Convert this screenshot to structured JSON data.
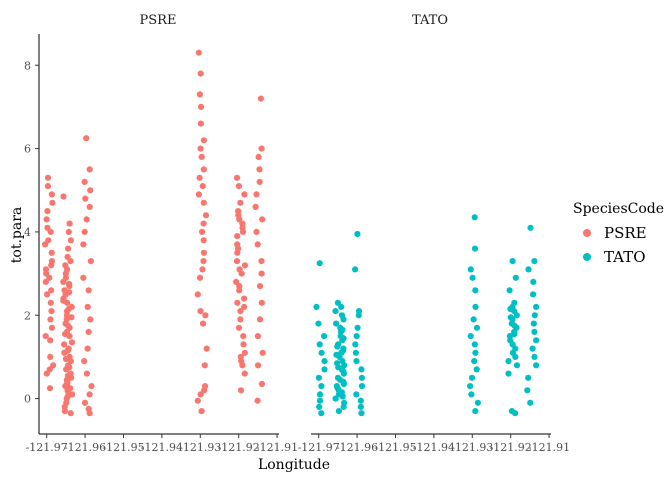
{
  "chart_data": {
    "type": "scatter",
    "xlabel": "Longitude",
    "ylabel": "tot.para",
    "ylim": [
      -0.85,
      8.75
    ],
    "y_ticks": [
      "0",
      "2",
      "4",
      "6",
      "8"
    ],
    "x_tick_labels": [
      "-121.97",
      "-121.96",
      "-121.95",
      "-121.94",
      "-121.93",
      "-121.92",
      "-121.91"
    ],
    "xlim": [
      -121.972,
      -121.9095
    ],
    "legend_position": "right",
    "legend": {
      "title": "SpeciesCode",
      "entries": [
        {
          "label": "PSRE",
          "color": "#F8766D"
        },
        {
          "label": "TATO",
          "color": "#00BFC4"
        }
      ]
    },
    "panels": [
      {
        "strip": "PSRE",
        "color": "#F8766D",
        "clusters": [
          {
            "lon": -121.9695,
            "values": [
              0.25,
              0.6,
              0.7,
              0.8,
              1.0,
              1.4,
              1.5,
              1.7,
              1.9,
              2.1,
              2.3,
              2.5,
              2.6,
              2.8,
              2.9,
              3.0,
              3.1,
              3.2,
              3.3,
              3.5,
              3.7,
              3.8,
              4.0,
              4.1,
              4.3,
              4.5,
              4.7,
              4.9,
              5.1,
              5.3
            ]
          },
          {
            "lon": -121.9645,
            "values": [
              -0.35,
              -0.3,
              -0.2,
              -0.1,
              0,
              0.05,
              0.1,
              0.2,
              0.25,
              0.3,
              0.4,
              0.5,
              0.6,
              0.7,
              0.8,
              0.9,
              1.0,
              1.1,
              1.2,
              1.3,
              1.5,
              1.6,
              1.7,
              1.8,
              1.9,
              2.0,
              2.1,
              2.2,
              2.3,
              2.4,
              2.5,
              2.6,
              2.7,
              2.8,
              2.9,
              3.0,
              3.1,
              3.2,
              3.3,
              3.4,
              3.6,
              3.8,
              4.0,
              4.2,
              4.85,
              0.15,
              0.35,
              0.55,
              0.75,
              0.95,
              1.15,
              1.35,
              1.55,
              1.75,
              1.95,
              2.15,
              2.35,
              2.55,
              2.75,
              0.45
            ]
          },
          {
            "lon": -121.9595,
            "values": [
              -0.35,
              -0.25,
              -0.1,
              0.1,
              0.3,
              0.6,
              0.9,
              1.2,
              1.6,
              1.9,
              2.2,
              2.6,
              2.9,
              3.3,
              3.7,
              4.0,
              4.3,
              4.6,
              4.8,
              5.0,
              5.2,
              5.5,
              6.25
            ]
          },
          {
            "lon": -121.9295,
            "values": [
              -0.3,
              -0.05,
              0.1,
              0.2,
              0.3,
              0.8,
              1.2,
              1.8,
              2.0,
              2.1,
              2.5,
              2.9,
              3.1,
              3.3,
              3.5,
              3.8,
              4.0,
              4.2,
              4.4,
              4.7,
              4.9,
              5.1,
              5.3,
              5.5,
              5.8,
              6.0,
              6.2,
              6.6,
              7.0,
              7.3,
              7.8,
              8.3
            ]
          },
          {
            "lon": -121.9195,
            "values": [
              0.2,
              0.6,
              0.8,
              1.0,
              1.3,
              1.5,
              1.7,
              1.9,
              2.1,
              2.3,
              2.4,
              2.6,
              2.8,
              3.0,
              3.1,
              3.3,
              3.5,
              3.7,
              3.9,
              4.0,
              4.1,
              4.2,
              4.3,
              4.5,
              4.7,
              4.9,
              5.1,
              5.3,
              2.2,
              2.7,
              3.2,
              3.6,
              4.4,
              0.9,
              1.1
            ]
          },
          {
            "lon": -121.9145,
            "values": [
              -0.05,
              0.35,
              0.8,
              1.1,
              1.5,
              1.9,
              2.3,
              2.7,
              3.0,
              3.3,
              3.7,
              4.0,
              4.3,
              4.6,
              4.9,
              5.2,
              5.5,
              5.8,
              6.0,
              7.2
            ]
          }
        ]
      },
      {
        "strip": "TATO",
        "color": "#00BFC4",
        "clusters": [
          {
            "lon": -121.9695,
            "values": [
              -0.35,
              -0.2,
              -0.05,
              0.1,
              0.3,
              0.5,
              0.7,
              0.9,
              1.1,
              1.3,
              1.5,
              1.8,
              2.2,
              3.25
            ]
          },
          {
            "lon": -121.9645,
            "values": [
              -0.3,
              -0.2,
              -0.1,
              0,
              0.1,
              0.2,
              0.3,
              0.4,
              0.5,
              0.6,
              0.7,
              0.8,
              0.9,
              1.0,
              1.1,
              1.2,
              1.3,
              1.4,
              1.5,
              1.6,
              1.7,
              1.8,
              1.9,
              2.0,
              2.1,
              2.2,
              2.3,
              0.05,
              0.15,
              0.35,
              0.45,
              0.65,
              0.85,
              1.05,
              1.25,
              1.45,
              1.65,
              0.25,
              0.75,
              1.15
            ]
          },
          {
            "lon": -121.9595,
            "values": [
              -0.35,
              -0.2,
              -0.05,
              0.1,
              0.3,
              0.5,
              0.7,
              0.9,
              1.1,
              1.3,
              1.5,
              1.7,
              2.0,
              2.1,
              3.1,
              3.95
            ]
          },
          {
            "lon": -121.9295,
            "values": [
              -0.3,
              -0.1,
              0.1,
              0.3,
              0.5,
              0.7,
              0.9,
              1.1,
              1.3,
              1.5,
              1.7,
              1.9,
              2.2,
              2.6,
              2.9,
              3.1,
              3.6,
              4.35
            ]
          },
          {
            "lon": -121.9195,
            "values": [
              -0.35,
              -0.3,
              0.6,
              0.8,
              1.0,
              1.2,
              1.4,
              1.5,
              1.6,
              1.7,
              1.8,
              1.9,
              2.0,
              2.1,
              2.2,
              2.3,
              1.1,
              1.3,
              1.55,
              1.75,
              1.95,
              2.15,
              0.9,
              2.6,
              2.9,
              3.3
            ]
          },
          {
            "lon": -121.9145,
            "values": [
              -0.1,
              0.2,
              0.5,
              0.8,
              1.0,
              1.2,
              1.4,
              1.6,
              1.8,
              2.0,
              2.2,
              2.5,
              2.8,
              3.1,
              3.3,
              4.1
            ]
          }
        ]
      }
    ]
  }
}
